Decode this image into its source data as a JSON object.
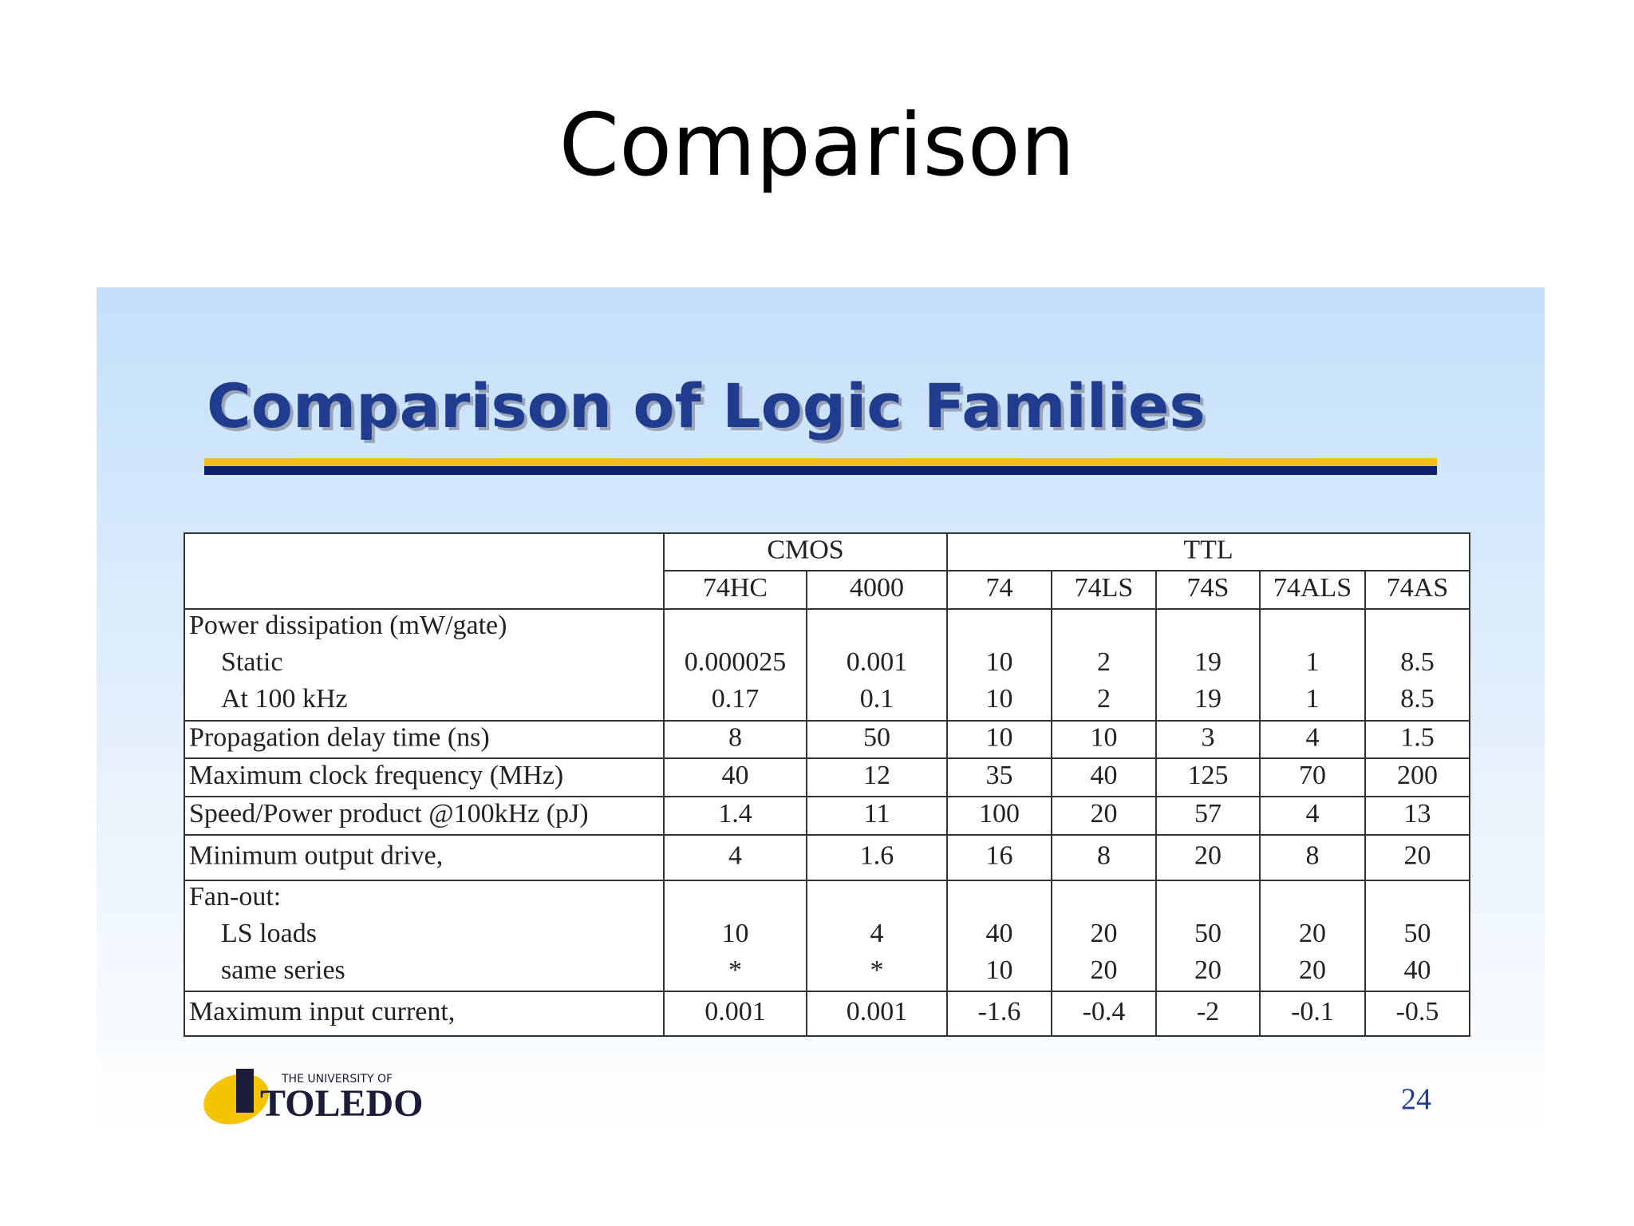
{
  "header": {
    "title": "Comparison"
  },
  "slide": {
    "title": "Comparison of Logic Families",
    "page_number": "24",
    "logo": {
      "top": "THE UNIVERSITY OF",
      "name": "TOLEDO"
    }
  },
  "table": {
    "groups": [
      {
        "label": "CMOS",
        "columns": [
          "74HC",
          "4000"
        ]
      },
      {
        "label": "TTL",
        "columns": [
          "74",
          "74LS",
          "74S",
          "74ALS",
          "74AS"
        ]
      }
    ],
    "rows": [
      {
        "label": "Power dissipation (mW/gate)",
        "subrows": [
          {
            "label": "Static",
            "values": [
              "0.000025",
              "0.001",
              "10",
              "2",
              "19",
              "1",
              "8.5"
            ]
          },
          {
            "label": "At 100 kHz",
            "values": [
              "0.17",
              "0.1",
              "10",
              "2",
              "19",
              "1",
              "8.5"
            ]
          }
        ]
      },
      {
        "label": "Propagation delay time (ns)",
        "values": [
          "8",
          "50",
          "10",
          "10",
          "3",
          "4",
          "1.5"
        ]
      },
      {
        "label": "Maximum clock frequency (MHz)",
        "values": [
          "40",
          "12",
          "35",
          "40",
          "125",
          "70",
          "200"
        ]
      },
      {
        "label": "Speed/Power product @100kHz (pJ)",
        "values": [
          "1.4",
          "11",
          "100",
          "20",
          "57",
          "4",
          "13"
        ]
      },
      {
        "label": "Minimum output drive,",
        "values": [
          "4",
          "1.6",
          "16",
          "8",
          "20",
          "8",
          "20"
        ]
      },
      {
        "label": "Fan-out:",
        "subrows": [
          {
            "label": "LS loads",
            "values": [
              "10",
              "4",
              "40",
              "20",
              "50",
              "20",
              "50"
            ]
          },
          {
            "label": "same series",
            "values": [
              "*",
              "*",
              "10",
              "20",
              "20",
              "20",
              "40"
            ]
          }
        ]
      },
      {
        "label": "Maximum input current,",
        "values": [
          "0.001",
          "0.001",
          "-1.6",
          "-0.4",
          "-2",
          "-0.1",
          "-0.5"
        ]
      }
    ]
  }
}
